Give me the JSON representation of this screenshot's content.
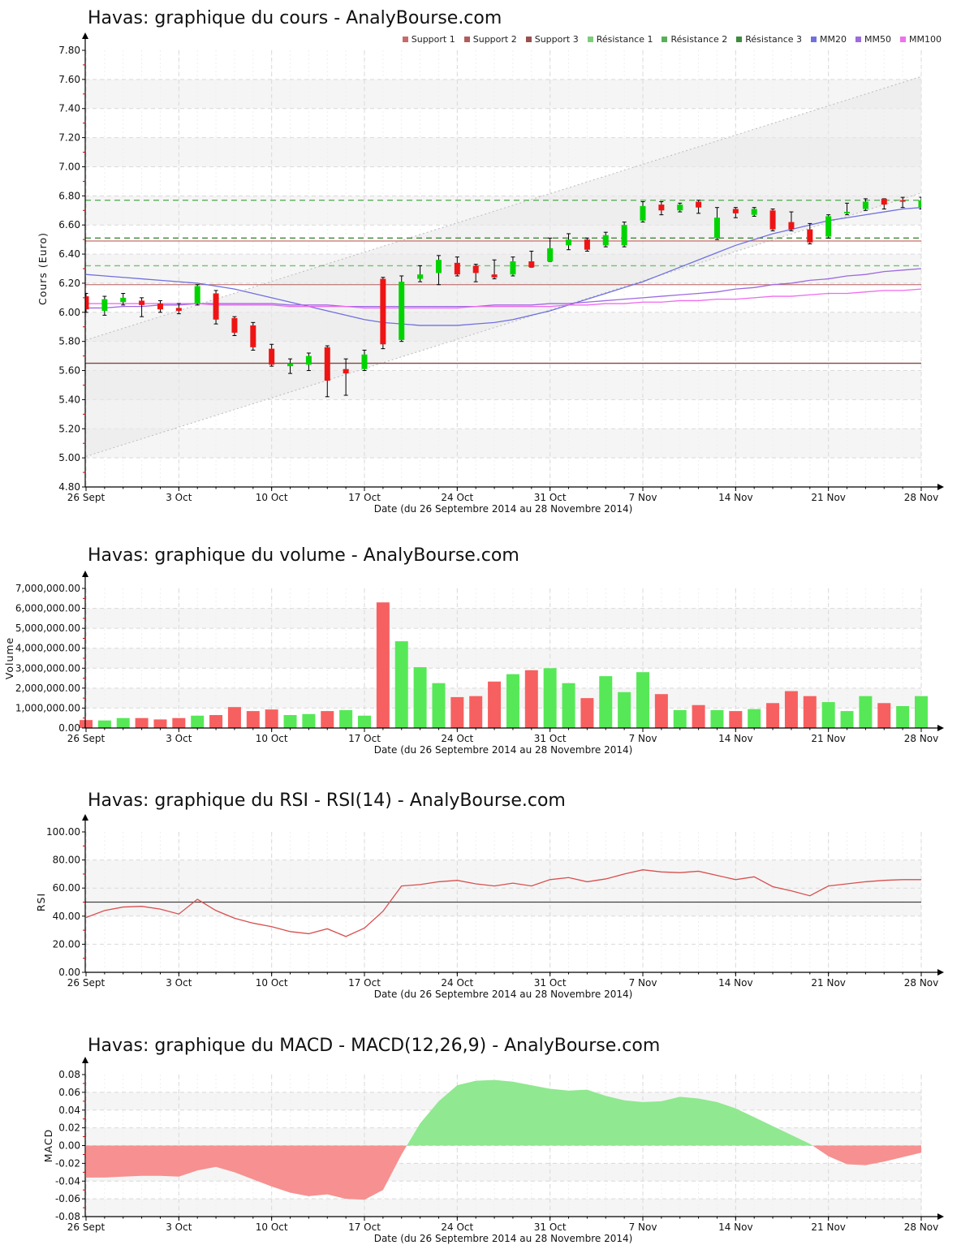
{
  "colors": {
    "candle_up": "#00d400",
    "candle_down": "#ee1414",
    "volume_up": "#57e857",
    "volume_down": "#f76060",
    "rsi_line": "#d94f4f",
    "rsi_midline": "#444444",
    "macd_positive": "#90e890",
    "macd_negative": "#f79090",
    "mm20": "#7070e0",
    "mm50": "#9d6ae0",
    "mm100": "#f06af0",
    "grid": "#d9d9d9",
    "stripe": "#f5f5f5",
    "minor_tick": "#cc0000",
    "channel": "#bbbbbb",
    "channel_fill": "#e9e9e9"
  },
  "chart_data": [
    {
      "type": "candlestick",
      "title": "Havas: graphique du cours - AnalyBourse.com",
      "ylabel": "Cours (Euro)",
      "xlabel": "Date (du 26 Septembre 2014 au 28 Novembre 2014)",
      "ylim": [
        4.8,
        7.8
      ],
      "ytick_step": 0.2,
      "y_tick_labels": [
        "7.80",
        "7.60",
        "7.40",
        "7.20",
        "7.00",
        "6.80",
        "6.60",
        "6.40",
        "6.20",
        "6.00",
        "5.80",
        "5.60",
        "5.40",
        "5.20",
        "5.00",
        "4.80"
      ],
      "x_tick_labels": [
        "26 Sept",
        "3 Oct",
        "10 Oct",
        "17 Oct",
        "24 Oct",
        "31 Oct",
        "7 Nov",
        "14 Nov",
        "21 Nov",
        "28 Nov"
      ],
      "x_tick_days": [
        1,
        6,
        11,
        16,
        21,
        26,
        31,
        36,
        41,
        46
      ],
      "legend": [
        {
          "label": "Support 1",
          "color": "#c96a6a"
        },
        {
          "label": "Support 2",
          "color": "#b25d5d"
        },
        {
          "label": "Support 3",
          "color": "#9a5050"
        },
        {
          "label": "Résistance 1",
          "color": "#7ccc7c"
        },
        {
          "label": "Résistance 2",
          "color": "#58b058"
        },
        {
          "label": "Résistance 3",
          "color": "#3d8b3d"
        },
        {
          "label": "MM20",
          "color": "#7070e0"
        },
        {
          "label": "MM50",
          "color": "#9d6ae0"
        },
        {
          "label": "MM100",
          "color": "#ee70ee"
        }
      ],
      "levels": [
        {
          "name": "Support 1",
          "value": 6.49,
          "color": "#d27979",
          "style": "solid",
          "width": 1.4
        },
        {
          "name": "Support 2",
          "value": 6.19,
          "color": "#b25d5d",
          "style": "solid",
          "width": 1
        },
        {
          "name": "Support 3",
          "value": 5.65,
          "color": "#7d4a45",
          "style": "solid",
          "width": 1.4
        },
        {
          "name": "Résistance 1",
          "value": 6.77,
          "color": "#58b058",
          "style": "dashed",
          "width": 1.4
        },
        {
          "name": "Résistance 2",
          "value": 6.32,
          "color": "#6fc46f",
          "style": "dashed",
          "width": 1.4
        },
        {
          "name": "Résistance 3",
          "value": 6.51,
          "color": "#3d8b3d",
          "style": "dashed",
          "width": 1.4
        }
      ],
      "channel": {
        "upper_start": 5.81,
        "upper_end": 7.62,
        "lower_start": 5.01,
        "lower_end": 6.82
      },
      "moving_averages": [
        {
          "name": "MM20",
          "color": "#7070e0",
          "values": [
            6.26,
            6.25,
            6.24,
            6.23,
            6.22,
            6.21,
            6.2,
            6.18,
            6.16,
            6.13,
            6.1,
            6.07,
            6.04,
            6.01,
            5.98,
            5.95,
            5.93,
            5.92,
            5.91,
            5.91,
            5.91,
            5.92,
            5.93,
            5.95,
            5.98,
            6.01,
            6.05,
            6.09,
            6.13,
            6.17,
            6.21,
            6.26,
            6.31,
            6.36,
            6.41,
            6.46,
            6.5,
            6.54,
            6.57,
            6.6,
            6.63,
            6.65,
            6.67,
            6.69,
            6.71,
            6.72
          ]
        },
        {
          "name": "MM50",
          "color": "#9d6ae0",
          "values": [
            6.03,
            6.03,
            6.04,
            6.04,
            6.05,
            6.05,
            6.06,
            6.06,
            6.06,
            6.06,
            6.06,
            6.05,
            6.05,
            6.05,
            6.04,
            6.04,
            6.04,
            6.04,
            6.04,
            6.04,
            6.04,
            6.04,
            6.05,
            6.05,
            6.05,
            6.06,
            6.06,
            6.07,
            6.08,
            6.09,
            6.1,
            6.11,
            6.12,
            6.13,
            6.14,
            6.16,
            6.17,
            6.19,
            6.2,
            6.22,
            6.23,
            6.25,
            6.26,
            6.28,
            6.29,
            6.3
          ]
        },
        {
          "name": "MM100",
          "color": "#f06af0",
          "values": [
            6.06,
            6.06,
            6.06,
            6.06,
            6.06,
            6.06,
            6.06,
            6.05,
            6.05,
            6.05,
            6.05,
            6.04,
            6.04,
            6.04,
            6.04,
            6.03,
            6.03,
            6.03,
            6.03,
            6.03,
            6.03,
            6.04,
            6.04,
            6.04,
            6.04,
            6.04,
            6.05,
            6.05,
            6.06,
            6.06,
            6.07,
            6.07,
            6.08,
            6.08,
            6.09,
            6.09,
            6.1,
            6.11,
            6.11,
            6.12,
            6.13,
            6.13,
            6.14,
            6.15,
            6.15,
            6.16
          ]
        }
      ],
      "ohlc": [
        [
          6.11,
          6.13,
          6.0,
          6.02
        ],
        [
          6.01,
          6.11,
          5.98,
          6.09
        ],
        [
          6.07,
          6.13,
          6.05,
          6.1
        ],
        [
          6.08,
          6.1,
          5.97,
          6.05
        ],
        [
          6.06,
          6.08,
          6.0,
          6.02
        ],
        [
          6.03,
          6.06,
          5.99,
          6.01
        ],
        [
          6.06,
          6.19,
          6.05,
          6.18
        ],
        [
          6.13,
          6.15,
          5.92,
          5.95
        ],
        [
          5.96,
          5.97,
          5.84,
          5.86
        ],
        [
          5.91,
          5.93,
          5.74,
          5.76
        ],
        [
          5.75,
          5.78,
          5.63,
          5.64
        ],
        [
          5.63,
          5.68,
          5.58,
          5.65
        ],
        [
          5.64,
          5.72,
          5.6,
          5.7
        ],
        [
          5.76,
          5.77,
          5.42,
          5.53
        ],
        [
          5.61,
          5.68,
          5.43,
          5.58
        ],
        [
          5.61,
          5.74,
          5.6,
          5.71
        ],
        [
          6.23,
          6.24,
          5.75,
          5.78
        ],
        [
          5.81,
          6.25,
          5.8,
          6.21
        ],
        [
          6.23,
          6.32,
          6.21,
          6.26
        ],
        [
          6.27,
          6.39,
          6.19,
          6.36
        ],
        [
          6.34,
          6.38,
          6.25,
          6.26
        ],
        [
          6.32,
          6.33,
          6.21,
          6.27
        ],
        [
          6.26,
          6.36,
          6.23,
          6.24
        ],
        [
          6.26,
          6.38,
          6.25,
          6.35
        ],
        [
          6.35,
          6.42,
          6.31,
          6.31
        ],
        [
          6.35,
          6.51,
          6.35,
          6.44
        ],
        [
          6.46,
          6.54,
          6.43,
          6.5
        ],
        [
          6.5,
          6.51,
          6.42,
          6.43
        ],
        [
          6.46,
          6.55,
          6.45,
          6.53
        ],
        [
          6.46,
          6.62,
          6.45,
          6.6
        ],
        [
          6.63,
          6.76,
          6.62,
          6.73
        ],
        [
          6.74,
          6.76,
          6.67,
          6.7
        ],
        [
          6.7,
          6.75,
          6.69,
          6.74
        ],
        [
          6.76,
          6.77,
          6.68,
          6.72
        ],
        [
          6.51,
          6.72,
          6.5,
          6.65
        ],
        [
          6.71,
          6.72,
          6.65,
          6.68
        ],
        [
          6.67,
          6.72,
          6.66,
          6.71
        ],
        [
          6.7,
          6.71,
          6.56,
          6.57
        ],
        [
          6.62,
          6.69,
          6.56,
          6.57
        ],
        [
          6.57,
          6.61,
          6.47,
          6.48
        ],
        [
          6.52,
          6.67,
          6.51,
          6.66
        ],
        [
          6.68,
          6.75,
          6.67,
          6.69
        ],
        [
          6.71,
          6.78,
          6.7,
          6.76
        ],
        [
          6.78,
          6.78,
          6.71,
          6.74
        ],
        [
          6.77,
          6.79,
          6.72,
          6.76
        ],
        [
          6.72,
          6.79,
          6.71,
          6.77
        ]
      ]
    },
    {
      "type": "bar",
      "title": "Havas: graphique du volume - AnalyBourse.com",
      "ylabel": "Volume",
      "xlabel": "Date (du 26 Septembre 2014 au 28 Novembre 2014)",
      "ylim": [
        0,
        7000000
      ],
      "ytick_step": 1000000,
      "y_tick_labels": [
        "7,000,000.00",
        "6,000,000.00",
        "5,000,000.00",
        "4,000,000.00",
        "3,000,000.00",
        "2,000,000.00",
        "1,000,000.00",
        "0.00"
      ],
      "x_tick_labels": [
        "26 Sept",
        "3 Oct",
        "10 Oct",
        "17 Oct",
        "24 Oct",
        "31 Oct",
        "7 Nov",
        "14 Nov",
        "21 Nov",
        "28 Nov"
      ],
      "x_tick_days": [
        1,
        6,
        11,
        16,
        21,
        26,
        31,
        36,
        41,
        46
      ],
      "values": [
        400000,
        380000,
        500000,
        500000,
        430000,
        500000,
        620000,
        650000,
        1050000,
        850000,
        930000,
        650000,
        700000,
        850000,
        900000,
        620000,
        6300000,
        4350000,
        3050000,
        2250000,
        1550000,
        1600000,
        2330000,
        2700000,
        2900000,
        3000000,
        2250000,
        1500000,
        2600000,
        1800000,
        2800000,
        1700000,
        900000,
        1150000,
        900000,
        850000,
        950000,
        1250000,
        1850000,
        1600000,
        1300000,
        850000,
        1600000,
        1250000,
        1100000,
        1600000
      ],
      "directions": [
        "down",
        "up",
        "up",
        "down",
        "down",
        "down",
        "up",
        "down",
        "down",
        "down",
        "down",
        "up",
        "up",
        "down",
        "up",
        "up",
        "down",
        "up",
        "up",
        "up",
        "down",
        "down",
        "down",
        "up",
        "down",
        "up",
        "up",
        "down",
        "up",
        "up",
        "up",
        "down",
        "up",
        "down",
        "up",
        "down",
        "up",
        "down",
        "down",
        "down",
        "up",
        "up",
        "up",
        "down",
        "up",
        "up"
      ]
    },
    {
      "type": "line",
      "title": "Havas: graphique du RSI - RSI(14) - AnalyBourse.com",
      "ylabel": "RSI",
      "xlabel": "Date (du 26 Septembre 2014 au 28 Novembre 2014)",
      "ylim": [
        0,
        100
      ],
      "ytick_step": 20,
      "y_tick_labels": [
        "100.00",
        "80.00",
        "60.00",
        "40.00",
        "20.00",
        "0.00"
      ],
      "x_tick_labels": [
        "26 Sept",
        "3 Oct",
        "10 Oct",
        "17 Oct",
        "24 Oct",
        "31 Oct",
        "7 Nov",
        "14 Nov",
        "21 Nov",
        "28 Nov"
      ],
      "x_tick_days": [
        1,
        6,
        11,
        16,
        21,
        26,
        31,
        36,
        41,
        46
      ],
      "midline": 50,
      "band": [
        40,
        80
      ],
      "values": [
        39,
        44,
        46.5,
        47,
        45,
        41.5,
        52,
        44,
        38.5,
        35,
        32.5,
        29,
        27.5,
        31,
        25.5,
        31.5,
        43.5,
        61.5,
        62.5,
        64.5,
        65.5,
        63,
        61.5,
        63.5,
        61.5,
        66,
        67.5,
        64.5,
        66.5,
        70,
        73,
        71.5,
        71,
        72,
        69,
        66,
        68,
        61,
        58,
        54.5,
        61.5,
        63,
        64.5,
        65.5,
        66,
        66
      ]
    },
    {
      "type": "area",
      "title": "Havas: graphique du MACD - MACD(12,26,9) - AnalyBourse.com",
      "ylabel": "MACD",
      "xlabel": "Date (du 26 Septembre 2014 au 28 Novembre 2014)",
      "ylim": [
        -0.08,
        0.08
      ],
      "ytick_step": 0.02,
      "y_tick_labels": [
        "0.08",
        "0.06",
        "0.04",
        "0.02",
        "0.00",
        "-0.02",
        "-0.04",
        "-0.06",
        "-0.08"
      ],
      "x_tick_labels": [
        "26 Sept",
        "3 Oct",
        "10 Oct",
        "17 Oct",
        "24 Oct",
        "31 Oct",
        "7 Nov",
        "14 Nov",
        "21 Nov",
        "28 Nov"
      ],
      "x_tick_days": [
        1,
        6,
        11,
        16,
        21,
        26,
        31,
        36,
        41,
        46
      ],
      "values": [
        -0.036,
        -0.036,
        -0.035,
        -0.034,
        -0.034,
        -0.035,
        -0.028,
        -0.024,
        -0.03,
        -0.038,
        -0.046,
        -0.053,
        -0.057,
        -0.055,
        -0.06,
        -0.061,
        -0.05,
        -0.01,
        0.025,
        0.05,
        0.068,
        0.073,
        0.074,
        0.072,
        0.068,
        0.064,
        0.062,
        0.063,
        0.056,
        0.051,
        0.049,
        0.05,
        0.055,
        0.053,
        0.049,
        0.042,
        0.032,
        0.022,
        0.012,
        0.002,
        -0.012,
        -0.021,
        -0.022,
        -0.018,
        -0.013,
        -0.008
      ]
    }
  ]
}
